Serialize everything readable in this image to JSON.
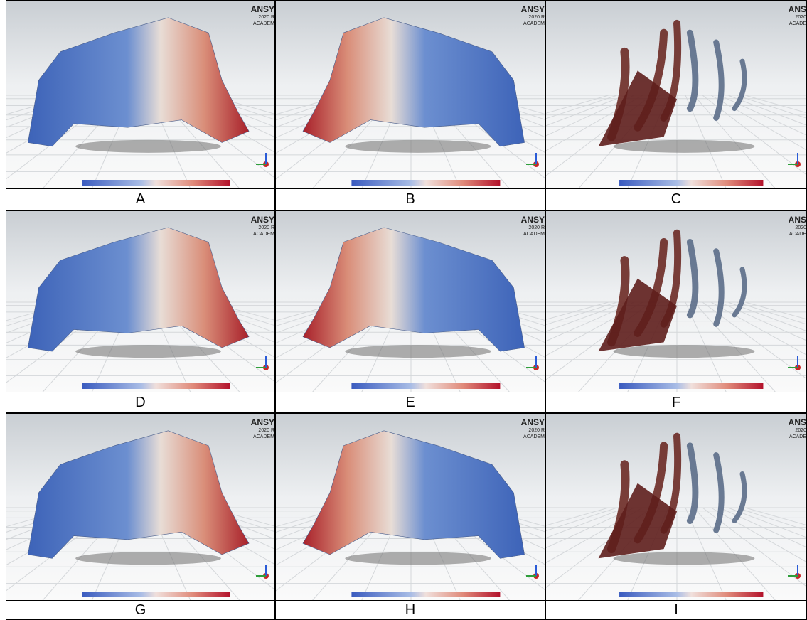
{
  "panels": [
    {
      "label": "A",
      "watermark": [
        "ANSY",
        "2020 R",
        "ACADEM"
      ]
    },
    {
      "label": "B",
      "watermark": [
        "ANSY",
        "2020 R",
        "ACADEM"
      ]
    },
    {
      "label": "C",
      "watermark": [
        "ANS",
        "2020",
        "ACADE"
      ]
    },
    {
      "label": "D",
      "watermark": [
        "ANSY",
        "2020 R",
        "ACADEM"
      ]
    },
    {
      "label": "E",
      "watermark": [
        "ANSY",
        "2020 R",
        "ACADEM"
      ]
    },
    {
      "label": "F",
      "watermark": [
        "ANS",
        "2020",
        "ACADE"
      ]
    },
    {
      "label": "G",
      "watermark": [
        "ANSY",
        "2020 R",
        "ACADEM"
      ]
    },
    {
      "label": "H",
      "watermark": [
        "ANSY",
        "2020 R",
        "ACADEM"
      ]
    },
    {
      "label": "I",
      "watermark": [
        "ANS",
        "2020",
        "ACADE"
      ]
    }
  ]
}
